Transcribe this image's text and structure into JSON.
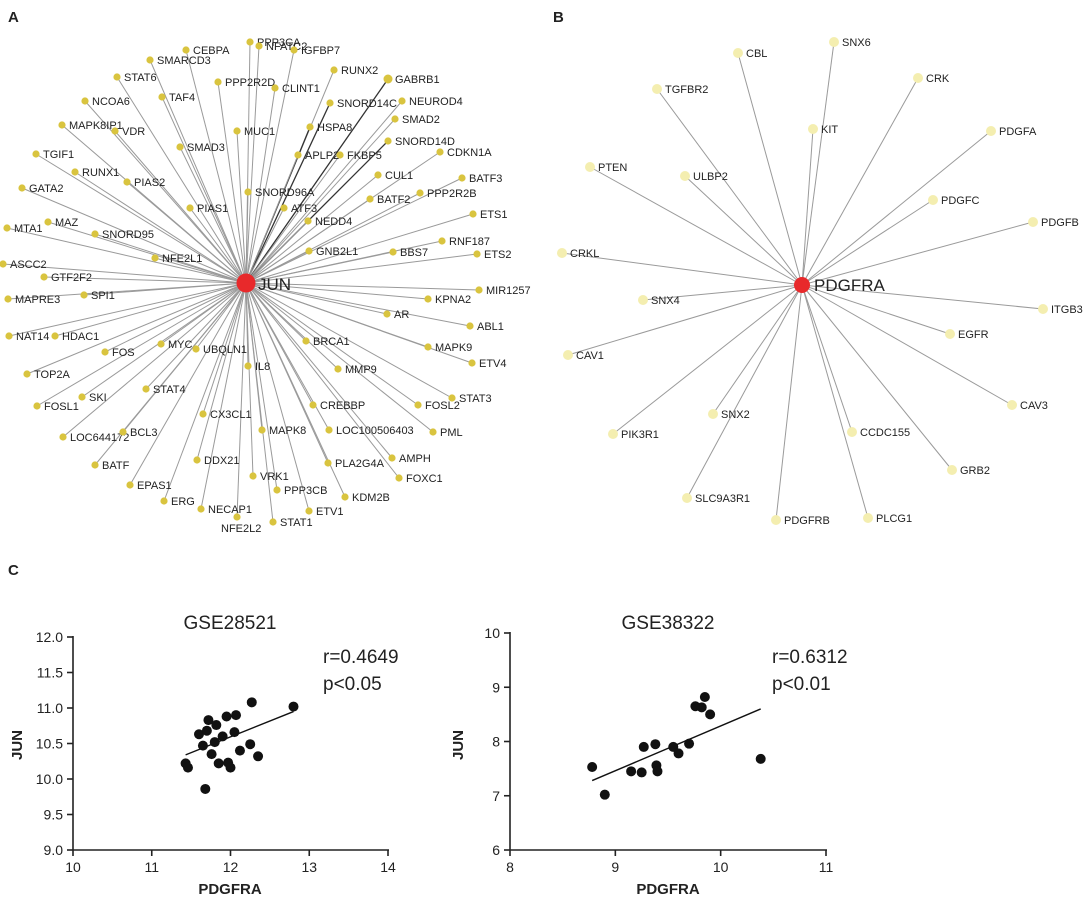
{
  "panels": {
    "a": "A",
    "b": "B",
    "c": "C"
  },
  "colors": {
    "hub": "#e8292b",
    "jun_node": "#d9c43f",
    "pdgfra_node": "#f4eeb0",
    "edge": "#9a9a9a",
    "point": "#111111"
  },
  "network_a": {
    "hub": "JUN",
    "nodes": [
      "PPP3CA",
      "NFATC2",
      "CEBPA",
      "IGFBP7",
      "SMARCD3",
      "RUNX2",
      "STAT6",
      "GABRB1",
      "PPP2R2D",
      "CLINT1",
      "NEUROD4",
      "NCOA6",
      "TAF4",
      "SNORD14C",
      "SMAD2",
      "MAPK8IP1",
      "VDR",
      "MUC1",
      "HSPA8",
      "SNORD14D",
      "CDKN1A",
      "SMAD3",
      "TGIF1",
      "RUNX1",
      "APLP2",
      "FKBP5",
      "CUL1",
      "BATF3",
      "PIAS2",
      "SNORD96A",
      "GATA2",
      "PPP2R2B",
      "PIAS1",
      "ATF3",
      "BATF2",
      "NEDD4",
      "MTA1",
      "MAZ",
      "ETS1",
      "SNORD95",
      "RNF187",
      "NFE2L1",
      "BBS7",
      "ETS2",
      "ASCC2",
      "GNB2L1",
      "GTF2F2",
      "MIR1257",
      "KPNA2",
      "MAPRE3",
      "SPI1",
      "AR",
      "ABL1",
      "NAT14",
      "HDAC1",
      "MYC",
      "BRCA1",
      "MAPK9",
      "FOS",
      "UBQLN1",
      "ETV4",
      "TOP2A",
      "IL8",
      "MMP9",
      "STAT3",
      "STAT4",
      "SKI",
      "FOSL1",
      "FOSL2",
      "CREBBP",
      "PML",
      "LOC644172",
      "BCL3",
      "CX3CL1",
      "MAPK8",
      "LOC100506403",
      "BATF",
      "DDX21",
      "AMPH",
      "PLA2G4A",
      "EPAS1",
      "FOXC1",
      "VRK1",
      "PPP3CB",
      "KDM2B",
      "ERG",
      "ETV1",
      "NECAP1",
      "STAT1",
      "NFE2L2"
    ]
  },
  "network_b": {
    "hub": "PDGFRA",
    "nodes": [
      "CBL",
      "SNX6",
      "TGFBR2",
      "CRK",
      "KIT",
      "PDGFA",
      "PTEN",
      "ULBP2",
      "PDGFC",
      "PDGFB",
      "CRKL",
      "SNX4",
      "ITGB3",
      "EGFR",
      "CAV1",
      "CAV3",
      "SNX2",
      "PIK3R1",
      "CCDC155",
      "GRB2",
      "SLC9A3R1",
      "PDGFRB",
      "PLCG1"
    ]
  },
  "chart_data": [
    {
      "type": "scatter",
      "title": "GSE28521",
      "xlabel": "PDGFRA",
      "ylabel": "JUN",
      "xlim": [
        10,
        14
      ],
      "ylim": [
        9.0,
        12.0
      ],
      "xticks": [
        "10",
        "11",
        "12",
        "13",
        "14"
      ],
      "yticks": [
        "9.0",
        "9.5",
        "10.0",
        "10.5",
        "11.0",
        "11.5",
        "12.0"
      ],
      "r_label": "r=0.4649",
      "p_label": "p<0.05",
      "points": [
        [
          11.43,
          10.22
        ],
        [
          11.46,
          10.16
        ],
        [
          11.6,
          10.63
        ],
        [
          11.65,
          10.47
        ],
        [
          11.7,
          10.68
        ],
        [
          11.72,
          10.83
        ],
        [
          11.68,
          9.86
        ],
        [
          11.76,
          10.35
        ],
        [
          11.8,
          10.52
        ],
        [
          11.82,
          10.76
        ],
        [
          11.85,
          10.22
        ],
        [
          11.9,
          10.6
        ],
        [
          11.95,
          10.88
        ],
        [
          11.97,
          10.23
        ],
        [
          12.0,
          10.16
        ],
        [
          12.05,
          10.66
        ],
        [
          12.07,
          10.9
        ],
        [
          12.12,
          10.4
        ],
        [
          12.25,
          10.49
        ],
        [
          12.27,
          11.08
        ],
        [
          12.35,
          10.32
        ],
        [
          12.8,
          11.02
        ]
      ],
      "fit": {
        "x": [
          11.43,
          12.8
        ],
        "y": [
          10.34,
          10.95
        ]
      }
    },
    {
      "type": "scatter",
      "title": "GSE38322",
      "xlabel": "PDGFRA",
      "ylabel": "JUN",
      "xlim": [
        8,
        11
      ],
      "ylim": [
        6,
        10
      ],
      "xticks": [
        "8",
        "9",
        "10",
        "11"
      ],
      "yticks": [
        "6",
        "7",
        "8",
        "9",
        "10"
      ],
      "r_label": "r=0.6312",
      "p_label": "p<0.01",
      "points": [
        [
          8.78,
          7.53
        ],
        [
          8.9,
          7.02
        ],
        [
          9.15,
          7.45
        ],
        [
          9.25,
          7.43
        ],
        [
          9.27,
          7.9
        ],
        [
          9.38,
          7.95
        ],
        [
          9.39,
          7.56
        ],
        [
          9.4,
          7.45
        ],
        [
          9.55,
          7.9
        ],
        [
          9.6,
          7.78
        ],
        [
          9.7,
          7.96
        ],
        [
          9.76,
          8.65
        ],
        [
          9.82,
          8.63
        ],
        [
          9.85,
          8.82
        ],
        [
          9.9,
          8.5
        ],
        [
          10.38,
          7.68
        ]
      ],
      "fit": {
        "x": [
          8.78,
          10.38
        ],
        "y": [
          7.28,
          8.6
        ]
      }
    }
  ]
}
